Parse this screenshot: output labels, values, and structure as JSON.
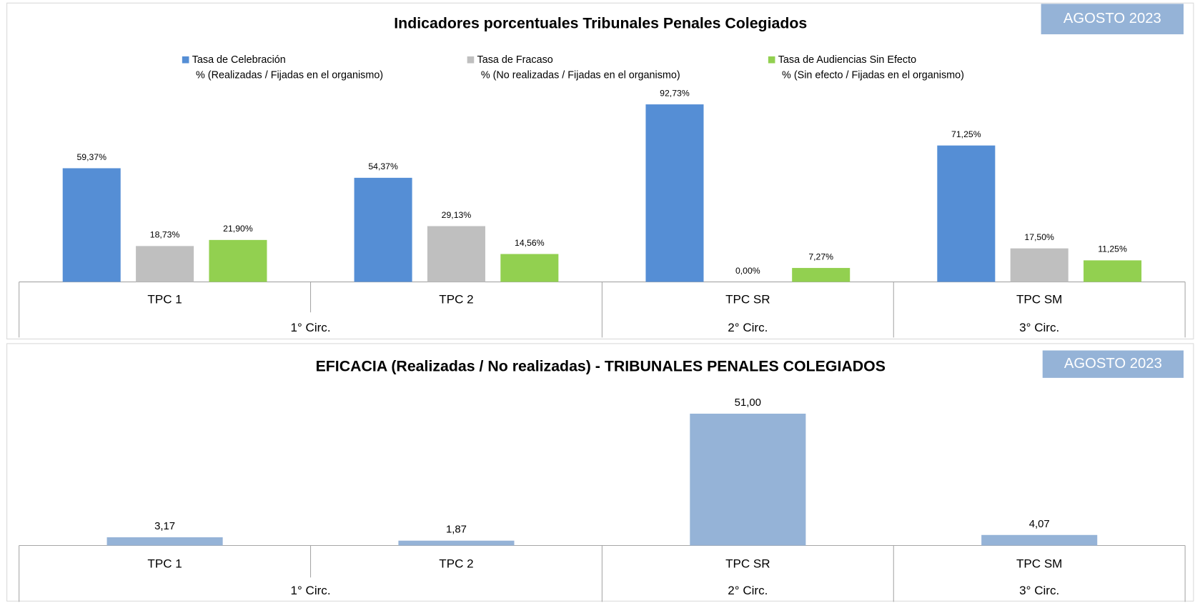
{
  "chart_data": [
    {
      "type": "bar",
      "title": "Indicadores porcentuales Tribunales Penales Colegiados",
      "badge": "AGOSTO 2023",
      "categories": [
        "TPC 1",
        "TPC 2",
        "TPC SR",
        "TPC SM"
      ],
      "category_groups": [
        "1° Circ.",
        "1° Circ.",
        "2° Circ.",
        "3° Circ."
      ],
      "series": [
        {
          "name": "Tasa de Celebración",
          "description": "% (Realizadas / Fijadas en el organismo)",
          "color": "#558ed5",
          "values": [
            59.37,
            54.37,
            92.73,
            71.25
          ],
          "value_labels": [
            "59,37%",
            "54,37%",
            "92,73%",
            "71,25%"
          ]
        },
        {
          "name": "Tasa de Fracaso",
          "description": "% (No realizadas / Fijadas en el organismo)",
          "color": "#bfbfbf",
          "values": [
            18.73,
            29.13,
            0.0,
            17.5
          ],
          "value_labels": [
            "18,73%",
            "29,13%",
            "0,00%",
            "17,50%"
          ]
        },
        {
          "name": "Tasa de Audiencias Sin Efecto",
          "description": "% (Sin efecto / Fijadas en el organismo)",
          "color": "#92d050",
          "values": [
            21.9,
            14.56,
            7.27,
            11.25
          ],
          "value_labels": [
            "21,90%",
            "14,56%",
            "7,27%",
            "11,25%"
          ]
        }
      ]
    },
    {
      "type": "bar",
      "title": "EFICACIA (Realizadas / No realizadas) - TRIBUNALES PENALES COLEGIADOS",
      "badge": "AGOSTO 2023",
      "categories": [
        "TPC 1",
        "TPC 2",
        "TPC SR",
        "TPC SM"
      ],
      "category_groups": [
        "1° Circ.",
        "1° Circ.",
        "2° Circ.",
        "3° Circ."
      ],
      "series": [
        {
          "color": "#95b3d7",
          "values": [
            3.17,
            1.87,
            51.0,
            4.07
          ],
          "value_labels": [
            "3,17",
            "1,87",
            "51,00",
            "4,07"
          ]
        }
      ]
    }
  ]
}
